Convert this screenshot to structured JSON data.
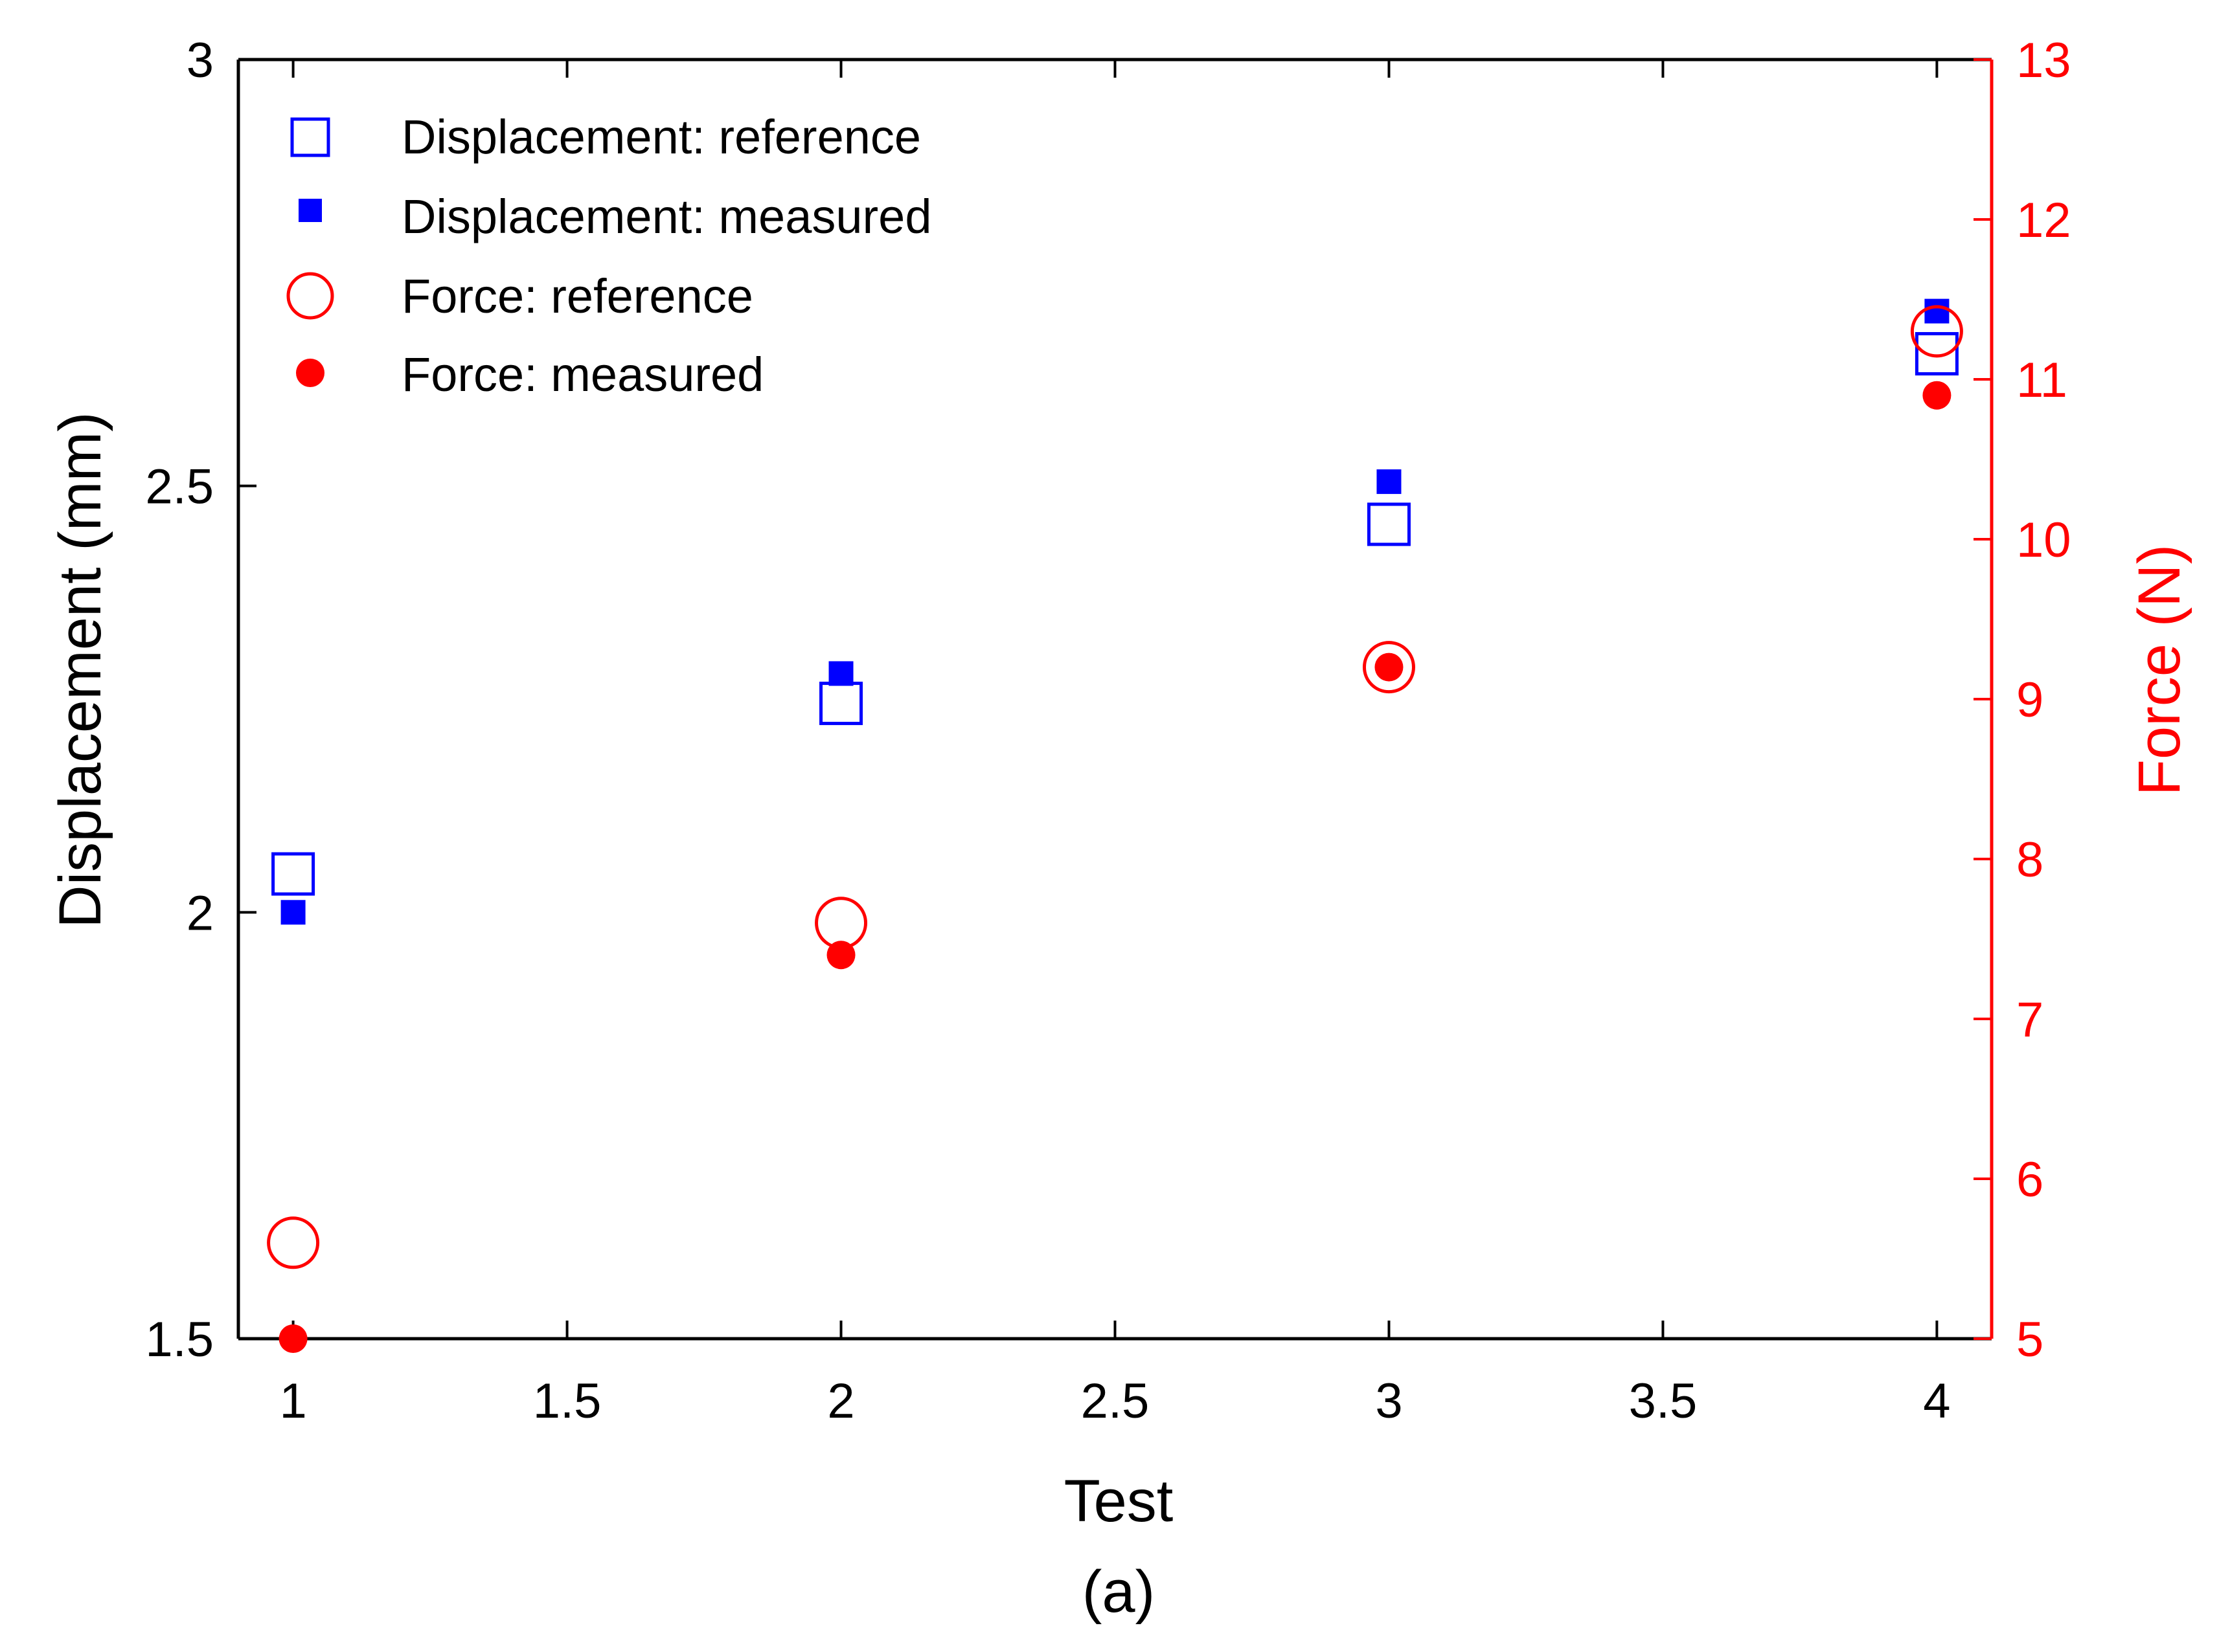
{
  "chart_data": {
    "type": "scatter",
    "panel_label": "(a)",
    "x_axis": {
      "label": "Test",
      "range": [
        0.9,
        4.1
      ],
      "ticks": [
        1,
        1.5,
        2,
        2.5,
        3,
        3.5,
        4
      ],
      "tick_labels": [
        "1",
        "1.5",
        "2",
        "2.5",
        "3",
        "3.5",
        "4"
      ]
    },
    "y_axis_left": {
      "label": "Displacement (mm)",
      "range": [
        1.5,
        3
      ],
      "ticks": [
        1.5,
        2,
        2.5,
        3
      ],
      "tick_labels": [
        "1.5",
        "2",
        "2.5",
        "3"
      ],
      "color": "#000000"
    },
    "y_axis_right": {
      "label": "Force (N)",
      "range": [
        5,
        13
      ],
      "ticks": [
        5,
        6,
        7,
        8,
        9,
        10,
        11,
        12,
        13
      ],
      "tick_labels": [
        "5",
        "6",
        "7",
        "8",
        "9",
        "10",
        "11",
        "12",
        "13"
      ],
      "color": "#ff0000"
    },
    "grid": false,
    "legend_position": "top-left",
    "series": [
      {
        "name": "Displacement: reference",
        "axis": "left",
        "marker": "square-open",
        "color": "#0000ff",
        "x": [
          1,
          2,
          3,
          4
        ],
        "y": [
          2.045,
          2.245,
          2.455,
          2.655
        ]
      },
      {
        "name": "Displacement: measured",
        "axis": "left",
        "marker": "square-filled",
        "color": "#0000ff",
        "x": [
          1,
          2,
          3,
          4
        ],
        "y": [
          2.0,
          2.28,
          2.505,
          2.705
        ]
      },
      {
        "name": "Force: reference",
        "axis": "right",
        "marker": "circle-open",
        "color": "#ff0000",
        "x": [
          1,
          2,
          3,
          4
        ],
        "y": [
          5.6,
          7.6,
          9.2,
          11.3
        ]
      },
      {
        "name": "Force: measured",
        "axis": "right",
        "marker": "circle-filled",
        "color": "#ff0000",
        "x": [
          1,
          2,
          3,
          4
        ],
        "y": [
          5.0,
          7.4,
          9.2,
          10.9
        ]
      }
    ]
  }
}
